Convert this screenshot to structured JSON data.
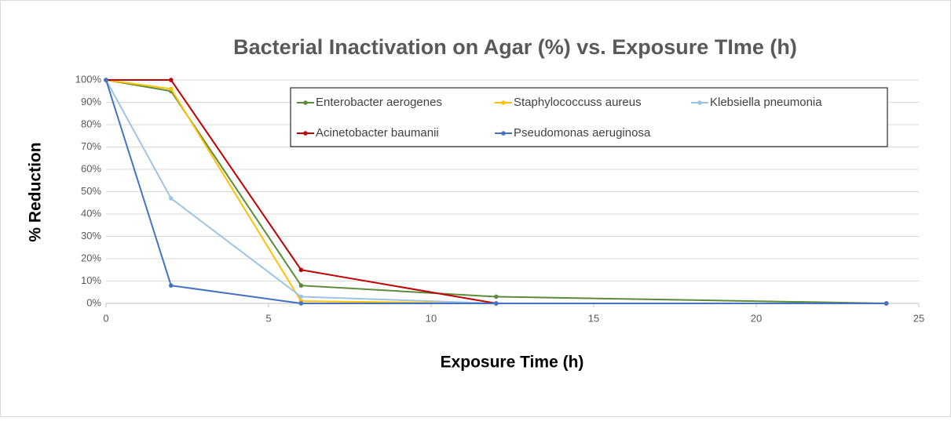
{
  "chart_data": {
    "type": "line",
    "title": "Bacterial Inactivation on Agar (%) vs. Exposure TIme (h)",
    "x_label": "Exposure Time (h)",
    "y_label": "% Reduction",
    "x": [
      0,
      2,
      6,
      12,
      24
    ],
    "series": [
      {
        "name": "Enterobacter aerogenes",
        "color": "#5b8c3a",
        "values": [
          100,
          95,
          8,
          3,
          0
        ]
      },
      {
        "name": "Staphylococcuss aureus",
        "color": "#ffc000",
        "values": [
          100,
          96,
          1,
          0,
          0
        ]
      },
      {
        "name": "Klebsiella pneumonia",
        "color": "#9dc3e6",
        "values": [
          100,
          47,
          3,
          0,
          0
        ]
      },
      {
        "name": "Acinetobacter baumanii",
        "color": "#c00000",
        "values": [
          100,
          100,
          15,
          0,
          0
        ]
      },
      {
        "name": "Pseudomonas aeruginosa",
        "color": "#4472c4",
        "values": [
          100,
          8,
          0,
          0,
          0
        ]
      }
    ],
    "xlim": [
      0,
      25
    ],
    "xticks": [
      0,
      5,
      10,
      15,
      20,
      25
    ],
    "ylim": [
      0,
      100
    ],
    "yticks": [
      {
        "value": 0,
        "label": "0%"
      },
      {
        "value": 10,
        "label": "10%"
      },
      {
        "value": 20,
        "label": "20%"
      },
      {
        "value": 30,
        "label": "30%"
      },
      {
        "value": 40,
        "label": "40%"
      },
      {
        "value": 50,
        "label": "50%"
      },
      {
        "value": 60,
        "label": "60%"
      },
      {
        "value": 70,
        "label": "70%"
      },
      {
        "value": 80,
        "label": "80%"
      },
      {
        "value": 90,
        "label": "90%"
      },
      {
        "value": 100,
        "label": "100%"
      }
    ],
    "grid": true
  }
}
